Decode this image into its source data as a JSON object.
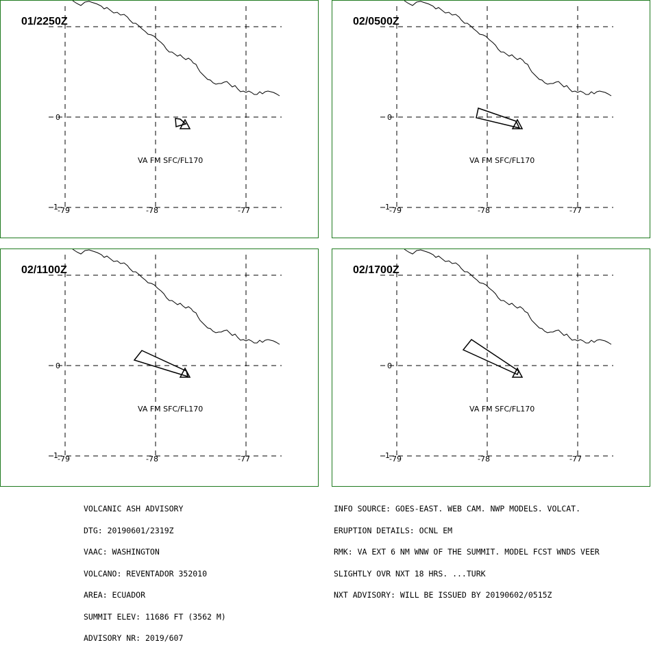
{
  "panels": [
    {
      "time": "01/2250Z",
      "label": "VA FM SFC/FL170"
    },
    {
      "time": "02/0500Z",
      "label": "VA FM SFC/FL170"
    },
    {
      "time": "02/1100Z",
      "label": "VA FM SFC/FL170"
    },
    {
      "time": "02/1700Z",
      "label": "VA FM SFC/FL170"
    }
  ],
  "axis": {
    "lat_label": "0",
    "lat_label_bottom": "-1",
    "lon_labels": [
      "-79",
      "-78",
      "-77"
    ]
  },
  "advisory_left": [
    "VOLCANIC ASH ADVISORY",
    "DTG: 20190601/2319Z",
    "VAAC: WASHINGTON",
    "VOLCANO: REVENTADOR 352010",
    "AREA: ECUADOR",
    "SUMMIT ELEV: 11686 FT (3562 M)",
    "ADVISORY NR: 2019/607"
  ],
  "advisory_right": [
    "INFO SOURCE: GOES-EAST. WEB CAM. NWP MODELS. VOLCAT.",
    "ERUPTION DETAILS: OCNL EM",
    "RMK: VA EXT 6 NM WNW OF THE SUMMIT. MODEL FCST WNDS VEER",
    "SLIGHTLY OVR NXT 18 HRS. ...TURK",
    "NXT ADVISORY: WILL BE ISSUED BY 20190602/0515Z"
  ],
  "colors": {
    "border": "#1e7a1e",
    "lines": "#000000",
    "background": "#ffffff"
  }
}
